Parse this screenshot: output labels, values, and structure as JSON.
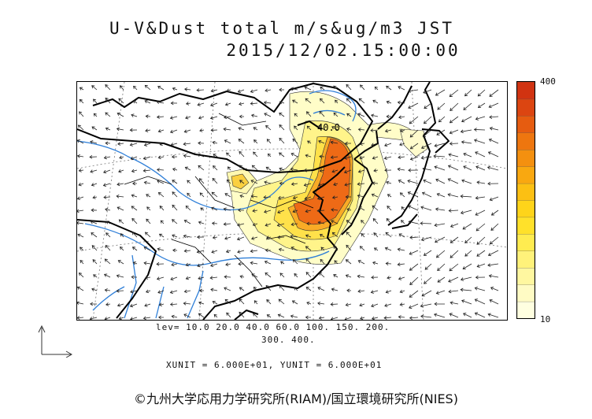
{
  "title": {
    "line1": "U-V&Dust total m/s&ug/m3 JST",
    "line2": "2015/12/02.15:00:00"
  },
  "map": {
    "contour_label": "40.0",
    "legend": {
      "line1": "lev= 10.0 20.0 40.0 60.0 100. 150. 200.",
      "line2": "300. 400."
    },
    "units": "XUNIT = 6.000E+01, YUNIT = 6.000E+01"
  },
  "colorbar": {
    "max_label": "400",
    "min_label": "10",
    "colors": [
      "#ffffe0",
      "#fffbc4",
      "#fff7a0",
      "#fff27a",
      "#ffec50",
      "#ffe12a",
      "#fed41a",
      "#fcc013",
      "#f9a810",
      "#f4900f",
      "#ee760f",
      "#e65c10",
      "#dc4511",
      "#d13311"
    ]
  },
  "copyright": "©九州大学応用力学研究所(RIAM)/国立環境研究所(NIES)"
}
